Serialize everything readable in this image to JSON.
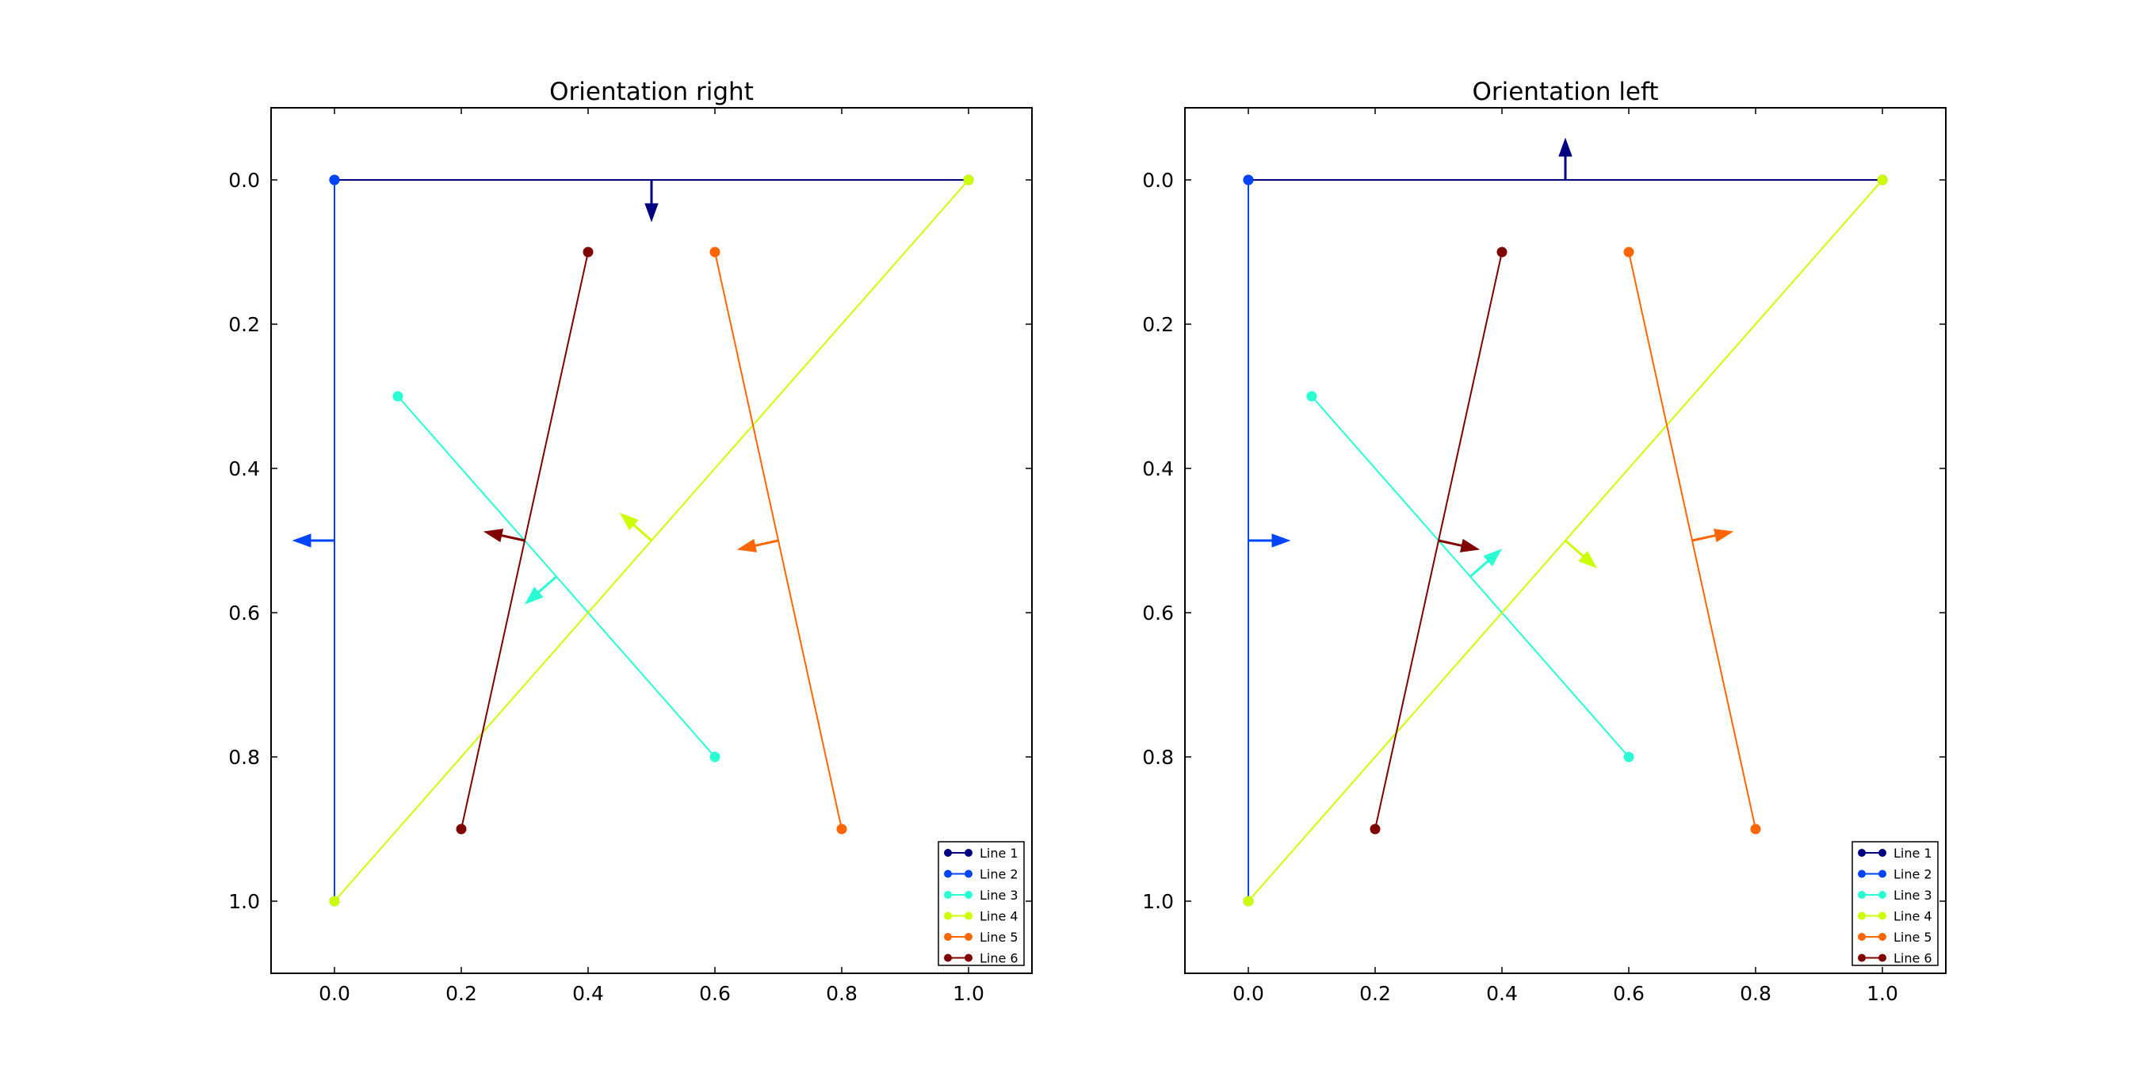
{
  "chart_data": [
    {
      "type": "line",
      "title": "Orientation right",
      "orientation": "right",
      "xlim": [
        -0.1,
        1.1
      ],
      "ylim": [
        1.1,
        -0.1
      ],
      "y_inverted": true,
      "xticks": [
        "0.0",
        "0.2",
        "0.4",
        "0.6",
        "0.8",
        "1.0"
      ],
      "yticks": [
        "0.0",
        "0.2",
        "0.4",
        "0.6",
        "0.8",
        "1.0"
      ],
      "grid": false,
      "legend": "lower-right",
      "series": [
        {
          "name": "Line 1",
          "color": "#000080",
          "points": [
            [
              0.0,
              0.0
            ],
            [
              1.0,
              0.0
            ]
          ]
        },
        {
          "name": "Line 2",
          "color": "#0044ff",
          "points": [
            [
              0.0,
              0.0
            ],
            [
              0.0,
              1.0
            ]
          ]
        },
        {
          "name": "Line 3",
          "color": "#2affd4",
          "points": [
            [
              0.1,
              0.3
            ],
            [
              0.6,
              0.8
            ]
          ]
        },
        {
          "name": "Line 4",
          "color": "#ccff00",
          "points": [
            [
              1.0,
              0.0
            ],
            [
              0.0,
              1.0
            ]
          ]
        },
        {
          "name": "Line 5",
          "color": "#ff6600",
          "points": [
            [
              0.6,
              0.1
            ],
            [
              0.8,
              0.9
            ]
          ]
        },
        {
          "name": "Line 6",
          "color": "#800000",
          "points": [
            [
              0.4,
              0.1
            ],
            [
              0.2,
              0.9
            ]
          ]
        }
      ]
    },
    {
      "type": "line",
      "title": "Orientation left",
      "orientation": "left",
      "xlim": [
        -0.1,
        1.1
      ],
      "ylim": [
        1.1,
        -0.1
      ],
      "y_inverted": true,
      "xticks": [
        "0.0",
        "0.2",
        "0.4",
        "0.6",
        "0.8",
        "1.0"
      ],
      "yticks": [
        "0.0",
        "0.2",
        "0.4",
        "0.6",
        "0.8",
        "1.0"
      ],
      "grid": false,
      "legend": "lower-right",
      "series": [
        {
          "name": "Line 1",
          "color": "#000080",
          "points": [
            [
              0.0,
              0.0
            ],
            [
              1.0,
              0.0
            ]
          ]
        },
        {
          "name": "Line 2",
          "color": "#0044ff",
          "points": [
            [
              0.0,
              0.0
            ],
            [
              0.0,
              1.0
            ]
          ]
        },
        {
          "name": "Line 3",
          "color": "#2affd4",
          "points": [
            [
              0.1,
              0.3
            ],
            [
              0.6,
              0.8
            ]
          ]
        },
        {
          "name": "Line 4",
          "color": "#ccff00",
          "points": [
            [
              1.0,
              0.0
            ],
            [
              0.0,
              1.0
            ]
          ]
        },
        {
          "name": "Line 5",
          "color": "#ff6600",
          "points": [
            [
              0.6,
              0.1
            ],
            [
              0.8,
              0.9
            ]
          ]
        },
        {
          "name": "Line 6",
          "color": "#800000",
          "points": [
            [
              0.4,
              0.1
            ],
            [
              0.2,
              0.9
            ]
          ]
        }
      ]
    }
  ]
}
